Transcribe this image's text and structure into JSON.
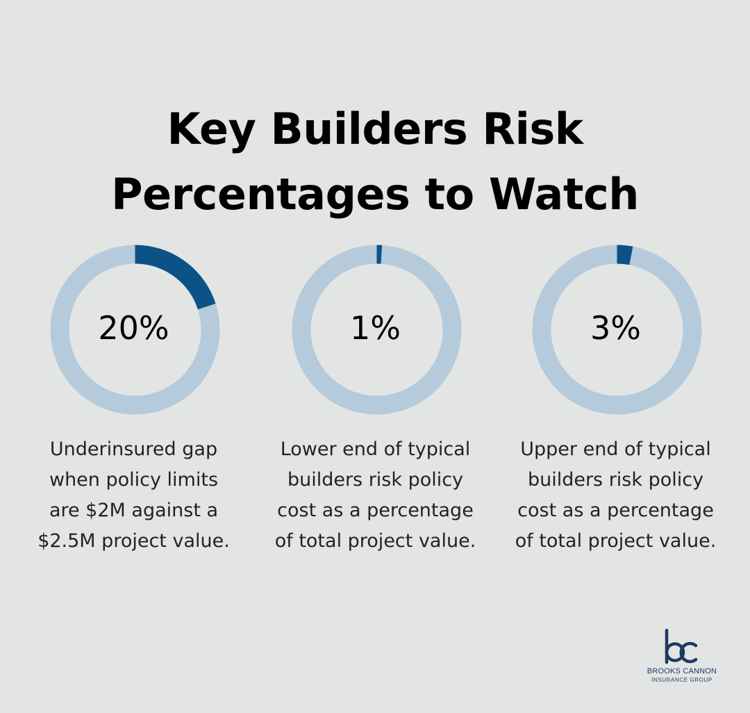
{
  "title": {
    "line1": "Key Builders Risk",
    "line2": "Percentages to Watch"
  },
  "colors": {
    "background": "#e3e5e5",
    "track": "#b5cbdb",
    "fill": "#0c5287",
    "text": "#000000",
    "brand": "#1d3a5f"
  },
  "chart_data": {
    "type": "pie",
    "title": "Key Builders Risk Percentages to Watch",
    "items": [
      {
        "value": 20,
        "label": "20%",
        "description": [
          "Underinsured gap",
          "when policy limits",
          "are $2M against a",
          "$2.5M project value."
        ]
      },
      {
        "value": 1,
        "label": "1%",
        "description": [
          "Lower end of typical",
          "builders risk policy",
          "cost as a percentage",
          "of total project value."
        ]
      },
      {
        "value": 3,
        "label": "3%",
        "description": [
          "Upper end of typical",
          "builders risk policy",
          "cost as a percentage",
          "of total project value."
        ]
      }
    ]
  },
  "logo": {
    "mark_icon": "bc-monogram-icon",
    "name": "BROOKS CANNON",
    "subtitle": "INSURANCE GROUP"
  }
}
